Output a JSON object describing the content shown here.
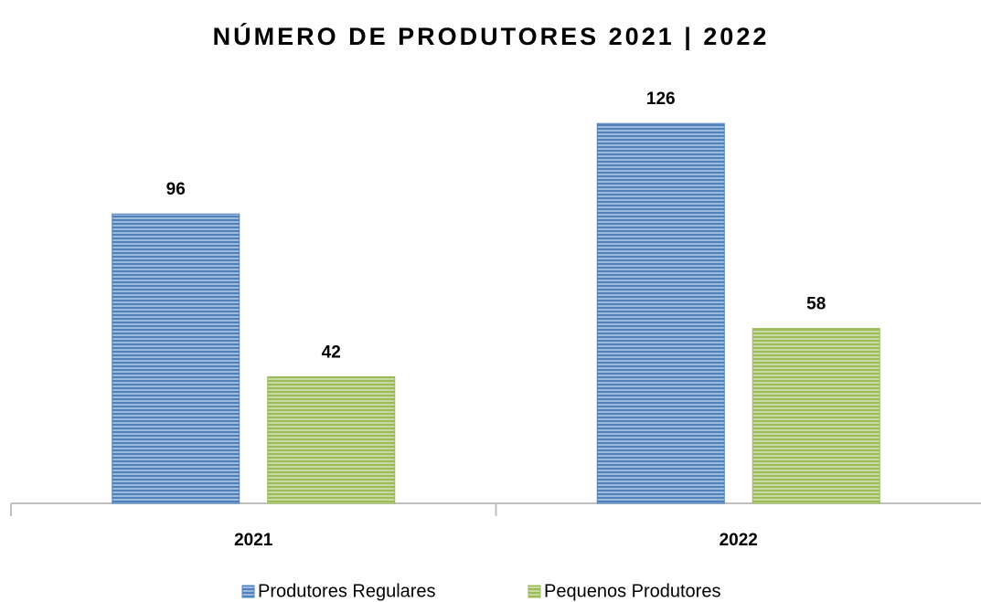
{
  "chart_data": {
    "type": "bar",
    "title": "NÚMERO DE PRODUTORES 2021 | 2022",
    "categories": [
      "2021",
      "2022"
    ],
    "series": [
      {
        "name": "Produtores Regulares",
        "color": "#4f81bd",
        "values": [
          96,
          126
        ]
      },
      {
        "name": "Pequenos Produtores",
        "color": "#9bbb59",
        "values": [
          42,
          58
        ]
      }
    ],
    "legend": "bottom"
  }
}
